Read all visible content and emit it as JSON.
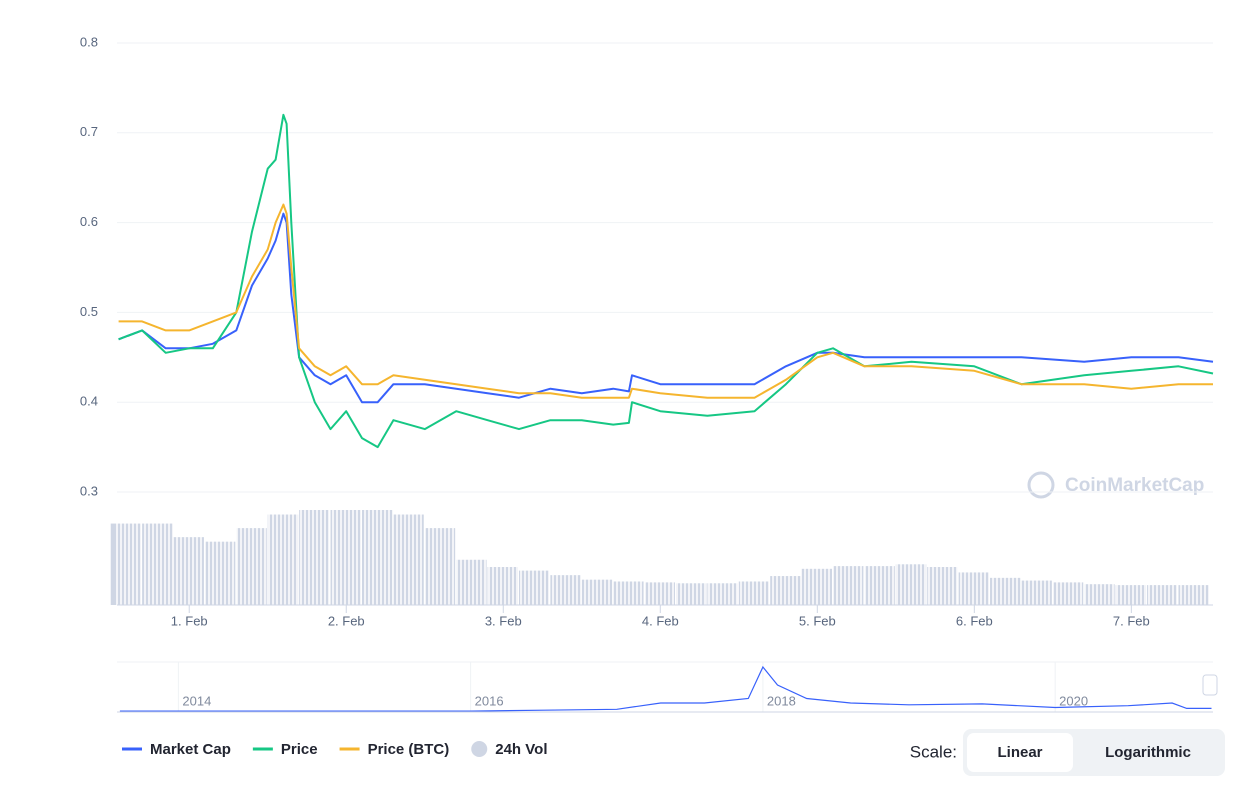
{
  "chart_data": {
    "type": "line",
    "x": [
      0.55,
      0.7,
      0.85,
      1.0,
      1.15,
      1.3,
      1.4,
      1.5,
      1.55,
      1.6,
      1.62,
      1.65,
      1.7,
      1.8,
      1.9,
      2.0,
      2.1,
      2.2,
      2.3,
      2.5,
      2.7,
      2.9,
      3.1,
      3.3,
      3.5,
      3.7,
      3.8,
      3.82,
      4.0,
      4.3,
      4.6,
      4.8,
      5.0,
      5.1,
      5.3,
      5.6,
      6.0,
      6.3,
      6.7,
      7.0,
      7.3,
      7.52
    ],
    "series": [
      {
        "name": "Market Cap",
        "color": "#3861fb",
        "values": [
          0.47,
          0.48,
          0.46,
          0.46,
          0.465,
          0.48,
          0.53,
          0.56,
          0.58,
          0.61,
          0.6,
          0.52,
          0.45,
          0.43,
          0.42,
          0.43,
          0.4,
          0.4,
          0.42,
          0.42,
          0.415,
          0.41,
          0.405,
          0.415,
          0.41,
          0.415,
          0.412,
          0.43,
          0.42,
          0.42,
          0.42,
          0.44,
          0.455,
          0.455,
          0.45,
          0.45,
          0.45,
          0.45,
          0.445,
          0.45,
          0.45,
          0.445
        ]
      },
      {
        "name": "Price",
        "color": "#16c784",
        "values": [
          0.47,
          0.48,
          0.455,
          0.46,
          0.46,
          0.5,
          0.59,
          0.66,
          0.67,
          0.72,
          0.71,
          0.6,
          0.45,
          0.4,
          0.37,
          0.39,
          0.36,
          0.35,
          0.38,
          0.37,
          0.39,
          0.38,
          0.37,
          0.38,
          0.38,
          0.375,
          0.377,
          0.4,
          0.39,
          0.385,
          0.39,
          0.42,
          0.455,
          0.46,
          0.44,
          0.445,
          0.44,
          0.42,
          0.43,
          0.435,
          0.44,
          0.432
        ]
      },
      {
        "name": "Price (BTC)",
        "color": "#f5b52e",
        "values": [
          0.49,
          0.49,
          0.48,
          0.48,
          0.49,
          0.5,
          0.54,
          0.57,
          0.6,
          0.62,
          0.61,
          0.55,
          0.46,
          0.44,
          0.43,
          0.44,
          0.42,
          0.42,
          0.43,
          0.425,
          0.42,
          0.415,
          0.41,
          0.41,
          0.405,
          0.405,
          0.405,
          0.415,
          0.41,
          0.405,
          0.405,
          0.425,
          0.45,
          0.455,
          0.44,
          0.44,
          0.435,
          0.42,
          0.42,
          0.415,
          0.42,
          0.42
        ]
      }
    ],
    "volume": {
      "name": "24h Vol",
      "color": "#cfd6e4",
      "x": [
        0.6,
        0.8,
        1.0,
        1.2,
        1.4,
        1.6,
        1.8,
        2.0,
        2.2,
        2.4,
        2.6,
        2.8,
        3.0,
        3.2,
        3.4,
        3.6,
        3.8,
        4.0,
        4.2,
        4.4,
        4.6,
        4.8,
        5.0,
        5.2,
        5.4,
        5.6,
        5.8,
        6.0,
        6.2,
        6.4,
        6.6,
        6.8,
        7.0,
        7.2,
        7.4
      ],
      "values": [
        90,
        90,
        75,
        70,
        85,
        100,
        105,
        105,
        105,
        100,
        85,
        50,
        42,
        38,
        33,
        28,
        26,
        25,
        24,
        24,
        26,
        32,
        40,
        43,
        43,
        45,
        42,
        36,
        30,
        27,
        25,
        23,
        22,
        22,
        22
      ]
    },
    "xlim": [
      0.54,
      7.52
    ],
    "xticks": [
      {
        "value": 1,
        "label": "1. Feb"
      },
      {
        "value": 2,
        "label": "2. Feb"
      },
      {
        "value": 3,
        "label": "3. Feb"
      },
      {
        "value": 4,
        "label": "4. Feb"
      },
      {
        "value": 5,
        "label": "5. Feb"
      },
      {
        "value": 6,
        "label": "6. Feb"
      },
      {
        "value": 7,
        "label": "7. Feb"
      }
    ],
    "ylim": [
      0.3,
      0.8
    ],
    "yticks": [
      0.3,
      0.4,
      0.5,
      0.6,
      0.7,
      0.8
    ],
    "grid": true,
    "watermark": "CoinMarketCap",
    "navigator": {
      "color": "#3861fb",
      "x": [
        2013.6,
        2014,
        2015,
        2016,
        2016.5,
        2017,
        2017.3,
        2017.6,
        2017.9,
        2018.0,
        2018.1,
        2018.3,
        2018.6,
        2019,
        2019.5,
        2020,
        2020.5,
        2020.8,
        2020.9,
        2021.07
      ],
      "values": [
        1,
        1,
        1,
        1,
        2,
        3,
        10,
        10,
        15,
        50,
        30,
        15,
        10,
        8,
        9,
        5,
        7,
        10,
        4,
        4
      ],
      "xlim": [
        2013.58,
        2021.08
      ],
      "xticks": [
        2014,
        2016,
        2018,
        2020
      ]
    },
    "scale_label": "Scale:",
    "scale_options": [
      "Linear",
      "Logarithmic"
    ]
  }
}
